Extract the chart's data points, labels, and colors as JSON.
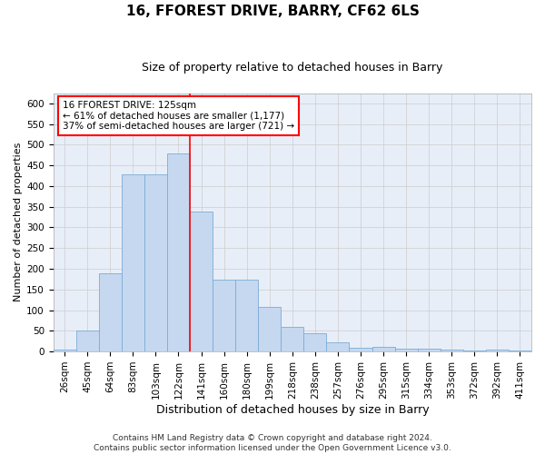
{
  "title": "16, FFOREST DRIVE, BARRY, CF62 6LS",
  "subtitle": "Size of property relative to detached houses in Barry",
  "xlabel": "Distribution of detached houses by size in Barry",
  "ylabel": "Number of detached properties",
  "categories": [
    "26sqm",
    "45sqm",
    "64sqm",
    "83sqm",
    "103sqm",
    "122sqm",
    "141sqm",
    "160sqm",
    "180sqm",
    "199sqm",
    "218sqm",
    "238sqm",
    "257sqm",
    "276sqm",
    "295sqm",
    "315sqm",
    "334sqm",
    "353sqm",
    "372sqm",
    "392sqm",
    "411sqm"
  ],
  "values": [
    5,
    50,
    188,
    428,
    428,
    478,
    338,
    173,
    173,
    107,
    60,
    45,
    23,
    9,
    12,
    7,
    6,
    4,
    3,
    5,
    3
  ],
  "bar_color": "#c5d8f0",
  "bar_edgecolor": "#7aacd6",
  "vline_x": 5.5,
  "vline_color": "red",
  "annotation_text": "16 FFOREST DRIVE: 125sqm\n← 61% of detached houses are smaller (1,177)\n37% of semi-detached houses are larger (721) →",
  "annotation_box_color": "white",
  "annotation_box_edgecolor": "red",
  "ylim": [
    0,
    625
  ],
  "yticks": [
    0,
    50,
    100,
    150,
    200,
    250,
    300,
    350,
    400,
    450,
    500,
    550,
    600
  ],
  "footer": "Contains HM Land Registry data © Crown copyright and database right 2024.\nContains public sector information licensed under the Open Government Licence v3.0.",
  "title_fontsize": 11,
  "subtitle_fontsize": 9,
  "ylabel_fontsize": 8,
  "xlabel_fontsize": 9,
  "tick_fontsize": 7.5,
  "footer_fontsize": 6.5,
  "annot_fontsize": 7.5
}
